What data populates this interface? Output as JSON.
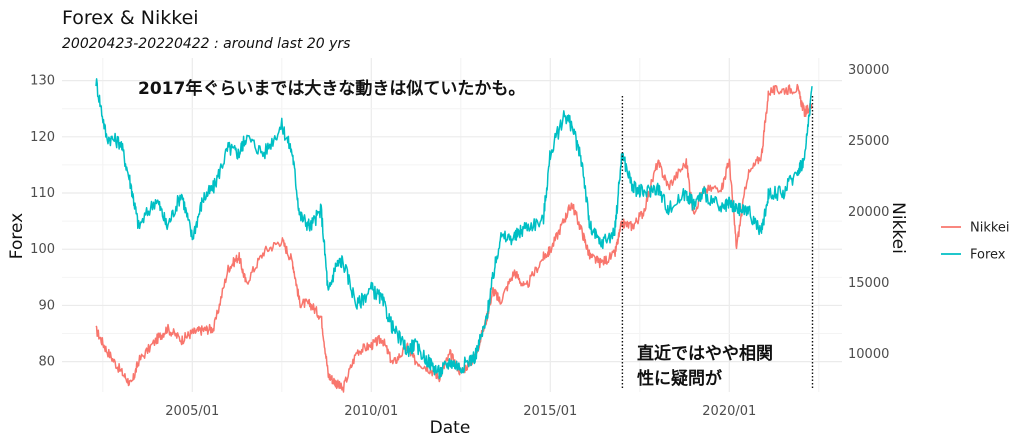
{
  "chart_data": {
    "type": "line",
    "title": "Forex & Nikkei",
    "subtitle": "20020423-20220422 : around last 20 yrs",
    "xlabel": "Date",
    "ylabel_left": "Forex",
    "ylabel_right": "Nikkei",
    "x_ticks": [
      "2005/01",
      "2010/01",
      "2015/01",
      "2020/01"
    ],
    "x_tick_years": [
      2005.0,
      2010.0,
      2015.0,
      2020.0
    ],
    "xlim": [
      2002.31,
      2022.31
    ],
    "y_left_ticks": [
      80,
      90,
      100,
      110,
      120,
      130
    ],
    "y_left_lim": [
      74,
      131
    ],
    "y_right_ticks": [
      10000,
      15000,
      20000,
      25000,
      30000
    ],
    "y_right_ticks_labels": [
      "10000",
      "15000",
      "20000",
      "25000",
      "30000"
    ],
    "y_right_lim": [
      7500,
      31000
    ],
    "grid": true,
    "legend_position": "right",
    "series": [
      {
        "name": "Nikkei",
        "color": "#F8766D",
        "axis": "right",
        "x": [
          2002.31,
          2002.6,
          2003.0,
          2003.3,
          2003.5,
          2004.0,
          2004.3,
          2004.7,
          2005.0,
          2005.3,
          2005.6,
          2006.0,
          2006.3,
          2006.5,
          2007.0,
          2007.5,
          2007.8,
          2008.0,
          2008.3,
          2008.6,
          2008.8,
          2009.0,
          2009.2,
          2009.6,
          2010.0,
          2010.3,
          2010.6,
          2011.0,
          2011.2,
          2011.6,
          2011.9,
          2012.2,
          2012.5,
          2012.9,
          2013.2,
          2013.4,
          2013.6,
          2014.0,
          2014.3,
          2014.8,
          2015.0,
          2015.4,
          2015.6,
          2015.9,
          2016.1,
          2016.4,
          2016.8,
          2017.0,
          2017.3,
          2017.6,
          2018.0,
          2018.3,
          2018.8,
          2018.99,
          2019.3,
          2019.8,
          2020.0,
          2020.2,
          2020.5,
          2020.9,
          2021.1,
          2021.5,
          2021.9,
          2022.1,
          2022.31
        ],
        "values": [
          11700,
          10300,
          8800,
          7800,
          9500,
          11000,
          11800,
          11000,
          11500,
          11700,
          11800,
          16000,
          16900,
          15000,
          17200,
          18000,
          16500,
          13600,
          13500,
          12600,
          8500,
          8000,
          7500,
          10200,
          10600,
          11100,
          9300,
          10500,
          9600,
          9000,
          8400,
          10000,
          8700,
          9800,
          12300,
          14500,
          13700,
          15800,
          14600,
          16800,
          17300,
          19500,
          20600,
          18500,
          16900,
          16400,
          17000,
          19200,
          19000,
          20000,
          23500,
          21800,
          23500,
          20000,
          21500,
          21800,
          23600,
          17500,
          22500,
          24000,
          28500,
          28600,
          28700,
          27000,
          27500
        ]
      },
      {
        "name": "Forex",
        "color": "#00BFC4",
        "axis": "left",
        "x": [
          2002.31,
          2002.6,
          2003.0,
          2003.3,
          2003.5,
          2004.0,
          2004.3,
          2004.7,
          2005.0,
          2005.3,
          2005.6,
          2006.0,
          2006.3,
          2006.5,
          2007.0,
          2007.5,
          2007.8,
          2008.0,
          2008.3,
          2008.6,
          2008.8,
          2009.0,
          2009.2,
          2009.6,
          2010.0,
          2010.3,
          2010.6,
          2011.0,
          2011.2,
          2011.6,
          2011.9,
          2012.2,
          2012.5,
          2012.9,
          2013.2,
          2013.4,
          2013.6,
          2014.0,
          2014.3,
          2014.8,
          2015.0,
          2015.4,
          2015.6,
          2015.9,
          2016.1,
          2016.4,
          2016.8,
          2017.0,
          2017.3,
          2017.6,
          2018.0,
          2018.3,
          2018.8,
          2018.99,
          2019.3,
          2019.8,
          2020.0,
          2020.2,
          2020.5,
          2020.9,
          2021.1,
          2021.5,
          2021.9,
          2022.1,
          2022.31
        ],
        "values": [
          130,
          120,
          119,
          111,
          104,
          109,
          104,
          110,
          102,
          109,
          111,
          118,
          117,
          120,
          117,
          122,
          117,
          106,
          104,
          107,
          92,
          97,
          98,
          90,
          93,
          91,
          86,
          82,
          83,
          80,
          78,
          80,
          79,
          81,
          87,
          95,
          102,
          102,
          104,
          105,
          117,
          124,
          122,
          115,
          104,
          101,
          103,
          117,
          111,
          110,
          111,
          107,
          110,
          108,
          110,
          107,
          108,
          107,
          107,
          103,
          110,
          110,
          114,
          116,
          129
        ]
      }
    ],
    "annotations": [
      {
        "text": "2017年ぐらいまでは大きな動きは似ていたかも。"
      },
      {
        "text": "直近ではやや相関"
      },
      {
        "text": "性に疑問が"
      }
    ],
    "vlines_years": [
      2017.0,
      2022.31
    ]
  }
}
